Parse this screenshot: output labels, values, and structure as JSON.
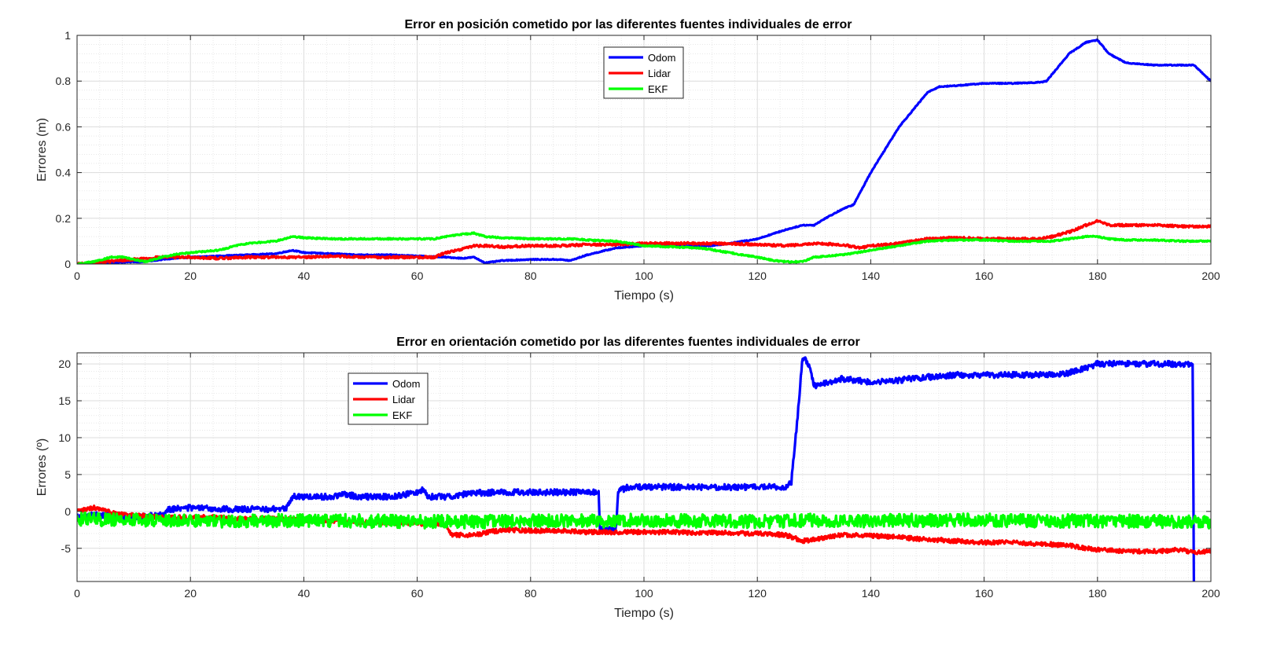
{
  "chart_data": [
    {
      "type": "line",
      "title": "Error en posición cometido por las diferentes fuentes individuales de error",
      "xlabel": "Tiempo (s)",
      "ylabel": "Errores (m)",
      "xlim": [
        0,
        200
      ],
      "ylim": [
        0,
        1
      ],
      "xticks": [
        "0",
        "20",
        "40",
        "60",
        "80",
        "100",
        "120",
        "140",
        "160",
        "180",
        "200"
      ],
      "yticks": [
        "0",
        "0.2",
        "0.4",
        "0.6",
        "0.8",
        "1"
      ],
      "grid": true,
      "legend_position": "top-center",
      "series": [
        {
          "name": "Odom",
          "color": "#0000ff",
          "noise": 0.002,
          "x": [
            0,
            5,
            10,
            12,
            15,
            20,
            25,
            30,
            35,
            38,
            40,
            45,
            50,
            55,
            60,
            65,
            68,
            70,
            72,
            75,
            80,
            85,
            87,
            90,
            95,
            100,
            105,
            110,
            112,
            115,
            120,
            125,
            128,
            130,
            132,
            135,
            137,
            140,
            145,
            150,
            152,
            155,
            160,
            165,
            170,
            171,
            175,
            178,
            180,
            182,
            185,
            190,
            195,
            197,
            200
          ],
          "y": [
            0,
            0.005,
            0.01,
            0.01,
            0.02,
            0.03,
            0.035,
            0.04,
            0.045,
            0.06,
            0.05,
            0.045,
            0.04,
            0.04,
            0.035,
            0.03,
            0.025,
            0.03,
            0.005,
            0.015,
            0.02,
            0.02,
            0.015,
            0.04,
            0.07,
            0.08,
            0.08,
            0.08,
            0.08,
            0.09,
            0.11,
            0.15,
            0.17,
            0.17,
            0.2,
            0.24,
            0.26,
            0.4,
            0.6,
            0.75,
            0.775,
            0.78,
            0.79,
            0.79,
            0.795,
            0.8,
            0.92,
            0.97,
            0.98,
            0.92,
            0.88,
            0.87,
            0.87,
            0.87,
            0.8
          ]
        },
        {
          "name": "Lidar",
          "color": "#ff0000",
          "noise": 0.005,
          "x": [
            0,
            5,
            10,
            15,
            20,
            25,
            30,
            35,
            40,
            45,
            50,
            55,
            60,
            63,
            65,
            67,
            70,
            72,
            75,
            80,
            85,
            90,
            95,
            100,
            105,
            110,
            115,
            120,
            125,
            130,
            135,
            138,
            140,
            145,
            150,
            155,
            160,
            165,
            170,
            172,
            175,
            178,
            180,
            182,
            185,
            190,
            195,
            200
          ],
          "y": [
            0,
            0.01,
            0.02,
            0.03,
            0.03,
            0.025,
            0.03,
            0.03,
            0.03,
            0.035,
            0.03,
            0.03,
            0.03,
            0.03,
            0.05,
            0.06,
            0.08,
            0.08,
            0.075,
            0.08,
            0.08,
            0.085,
            0.085,
            0.09,
            0.09,
            0.09,
            0.09,
            0.085,
            0.08,
            0.09,
            0.085,
            0.07,
            0.08,
            0.09,
            0.11,
            0.115,
            0.11,
            0.11,
            0.11,
            0.12,
            0.14,
            0.17,
            0.19,
            0.17,
            0.17,
            0.17,
            0.165,
            0.165
          ]
        },
        {
          "name": "EKF",
          "color": "#00ff00",
          "noise": 0.003,
          "x": [
            0,
            3,
            6,
            8,
            10,
            12,
            15,
            18,
            20,
            25,
            28,
            30,
            35,
            38,
            40,
            45,
            50,
            55,
            60,
            63,
            65,
            68,
            70,
            72,
            75,
            80,
            85,
            88,
            90,
            95,
            100,
            105,
            110,
            115,
            120,
            123,
            125,
            128,
            130,
            135,
            140,
            145,
            150,
            155,
            160,
            165,
            170,
            172,
            175,
            178,
            180,
            182,
            185,
            190,
            195,
            200
          ],
          "y": [
            0,
            0.01,
            0.03,
            0.03,
            0.02,
            0.01,
            0.03,
            0.045,
            0.05,
            0.06,
            0.08,
            0.09,
            0.1,
            0.12,
            0.115,
            0.11,
            0.11,
            0.11,
            0.11,
            0.11,
            0.12,
            0.13,
            0.135,
            0.12,
            0.115,
            0.11,
            0.11,
            0.11,
            0.105,
            0.1,
            0.08,
            0.075,
            0.07,
            0.05,
            0.03,
            0.015,
            0.01,
            0.01,
            0.03,
            0.04,
            0.06,
            0.08,
            0.1,
            0.105,
            0.105,
            0.1,
            0.1,
            0.1,
            0.11,
            0.12,
            0.12,
            0.11,
            0.105,
            0.105,
            0.1,
            0.1
          ]
        }
      ]
    },
    {
      "type": "line",
      "title": "Error en orientación cometido por las diferentes fuentes individuales de error",
      "xlabel": "Tiempo (s)",
      "ylabel": "Errores (º)",
      "xlim": [
        0,
        200
      ],
      "ylim": [
        -9.5,
        21.5
      ],
      "xticks": [
        "0",
        "20",
        "40",
        "60",
        "80",
        "100",
        "120",
        "140",
        "160",
        "180",
        "200"
      ],
      "yticks": [
        "-5",
        "0",
        "5",
        "10",
        "15",
        "20"
      ],
      "ytick_values": [
        -5,
        0,
        5,
        10,
        15,
        20
      ],
      "grid": true,
      "legend_position": "top-left",
      "series": [
        {
          "name": "Odom",
          "color": "#0000ff",
          "noise": 0.4,
          "x": [
            0,
            5,
            10,
            15,
            16,
            20,
            25,
            30,
            35,
            37,
            38,
            40,
            45,
            47,
            50,
            55,
            58,
            60,
            61,
            62,
            65,
            70,
            75,
            80,
            85,
            87,
            90,
            92,
            92.2,
            95,
            95.5,
            97,
            100,
            105,
            110,
            115,
            120,
            125,
            126,
            127,
            128,
            129,
            130,
            131,
            135,
            140,
            145,
            150,
            155,
            160,
            165,
            170,
            175,
            178,
            180,
            185,
            190,
            195,
            196.5,
            196.8,
            197
          ],
          "y": [
            -0.5,
            -0.5,
            -0.8,
            -0.5,
            0.3,
            0.5,
            0.3,
            0.3,
            0.3,
            0.5,
            2,
            2,
            2,
            2.3,
            2,
            2,
            2.3,
            2.6,
            3,
            2,
            2,
            2.5,
            2.6,
            2.6,
            2.6,
            2.6,
            2.7,
            2.6,
            -2.5,
            -2.5,
            2.8,
            3.2,
            3.3,
            3.3,
            3.3,
            3.3,
            3.3,
            3.3,
            4,
            12,
            21,
            20,
            17,
            17.2,
            18,
            17.5,
            17.8,
            18.2,
            18.5,
            18.5,
            18.5,
            18.5,
            18.8,
            19.5,
            20,
            20,
            20,
            20,
            20,
            20,
            -9.5
          ]
        },
        {
          "name": "Lidar",
          "color": "#ff0000",
          "noise": 0.3,
          "x": [
            0,
            3,
            5,
            10,
            15,
            20,
            25,
            30,
            35,
            40,
            45,
            50,
            55,
            60,
            65,
            66,
            70,
            75,
            80,
            85,
            90,
            95,
            100,
            105,
            110,
            115,
            120,
            125,
            128,
            130,
            135,
            140,
            145,
            150,
            155,
            160,
            165,
            170,
            175,
            178,
            180,
            185,
            190,
            195,
            197,
            200
          ],
          "y": [
            0,
            0.5,
            0,
            -0.5,
            -0.8,
            -0.8,
            -0.8,
            -1,
            -1,
            -1.2,
            -1.3,
            -1.5,
            -1.5,
            -1.6,
            -1.8,
            -3.2,
            -3.2,
            -2.5,
            -2.6,
            -2.6,
            -2.8,
            -2.8,
            -2.8,
            -2.8,
            -2.9,
            -2.9,
            -3,
            -3.2,
            -4,
            -3.8,
            -3.2,
            -3.3,
            -3.5,
            -3.8,
            -4,
            -4.2,
            -4.2,
            -4.4,
            -4.6,
            -5,
            -5.2,
            -5.4,
            -5.4,
            -5.2,
            -5.6,
            -5.3
          ]
        },
        {
          "name": "EKF",
          "color": "#00ff00",
          "noise": 0.9,
          "x": [
            0,
            10,
            20,
            30,
            40,
            50,
            60,
            70,
            80,
            90,
            100,
            110,
            120,
            130,
            140,
            150,
            160,
            170,
            180,
            190,
            200
          ],
          "y": [
            -1,
            -1.2,
            -1.3,
            -1.3,
            -1.2,
            -1.3,
            -1.4,
            -1.4,
            -1.3,
            -1.3,
            -1.2,
            -1.3,
            -1.4,
            -1.2,
            -1.3,
            -1.2,
            -1.2,
            -1.3,
            -1.3,
            -1.3,
            -1.4
          ]
        }
      ]
    }
  ]
}
